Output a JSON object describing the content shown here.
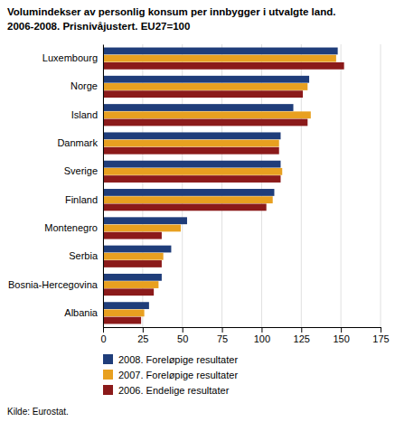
{
  "chart_data": {
    "type": "bar",
    "orientation": "horizontal",
    "title": "Volumindekser av personlig konsum per innbygger i utvalgte land.",
    "subtitle": "2006-2008. Prisnivåjustert. EU27=100",
    "categories": [
      "Luxembourg",
      "Norge",
      "Island",
      "Danmark",
      "Sverige",
      "Finland",
      "Montenegro",
      "Serbia",
      "Bosnia-Hercegovina",
      "Albania"
    ],
    "series": [
      {
        "name": "2008. Foreløpige resultater",
        "color": "#1f3d7a",
        "values": [
          148,
          130,
          120,
          112,
          112,
          108,
          53,
          43,
          37,
          29
        ]
      },
      {
        "name": "2007. Foreløpige resultater",
        "color": "#e8a020",
        "values": [
          147,
          129,
          131,
          111,
          113,
          107,
          49,
          38,
          35,
          26
        ]
      },
      {
        "name": "2006. Endelige resultater",
        "color": "#8b1a1a",
        "values": [
          152,
          126,
          129,
          111,
          112,
          103,
          37,
          37,
          32,
          24
        ]
      }
    ],
    "xlim": [
      0,
      175
    ],
    "xticks": [
      0,
      25,
      50,
      75,
      100,
      125,
      150,
      175
    ],
    "grid": true,
    "legend": "bottom",
    "annotations": [
      "Kilde: Eurostat."
    ]
  }
}
